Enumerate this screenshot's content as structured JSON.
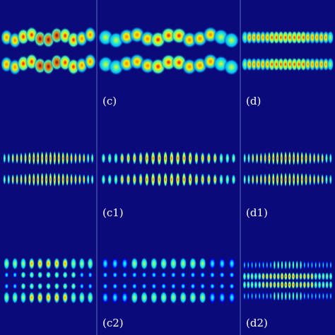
{
  "figure": {
    "background_color": "#0a0a7a",
    "divider_color": "#5b6fc2",
    "colormap": [
      "#000080",
      "#0000ff",
      "#00c0ff",
      "#40ffc0",
      "#ffff00",
      "#ff8000",
      "#ff0000",
      "#800000"
    ],
    "panels": [
      {
        "label": "",
        "row": 0,
        "col": 0,
        "pattern": "two-band-wave",
        "peak_level": 0.85,
        "fringe_count": 11
      },
      {
        "label": "(c)",
        "row": 0,
        "col": 1,
        "pattern": "two-band-wave",
        "peak_level": 0.7,
        "fringe_count": 13
      },
      {
        "label": "(d)",
        "row": 0,
        "col": 2,
        "pattern": "two-band-smooth",
        "peak_level": 0.75,
        "fringe_count": 20
      },
      {
        "label": "",
        "row": 1,
        "col": 0,
        "pattern": "two-band-fringe",
        "peak_level": 0.8,
        "fringe_count": 22
      },
      {
        "label": "(c1)",
        "row": 1,
        "col": 1,
        "pattern": "two-band-fringe",
        "peak_level": 0.75,
        "fringe_count": 22
      },
      {
        "label": "(d1)",
        "row": 1,
        "col": 2,
        "pattern": "two-band-fringe",
        "peak_level": 0.8,
        "fringe_count": 22
      },
      {
        "label": "",
        "row": 2,
        "col": 0,
        "pattern": "four-band-blob",
        "peak_level": 0.85,
        "fringe_count": 11
      },
      {
        "label": "(c2)",
        "row": 2,
        "col": 1,
        "pattern": "four-band-blob",
        "peak_level": 0.6,
        "fringe_count": 14
      },
      {
        "label": "(d2)",
        "row": 2,
        "col": 2,
        "pattern": "dense-core",
        "peak_level": 0.7,
        "fringe_count": 24
      }
    ]
  }
}
